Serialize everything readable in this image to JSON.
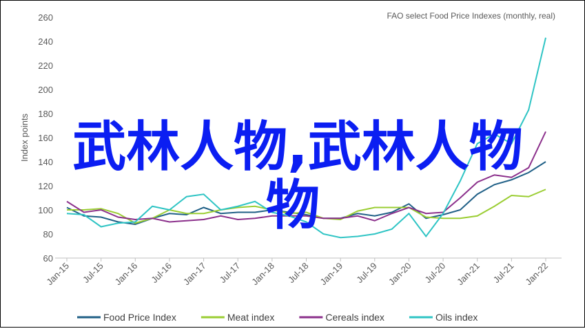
{
  "chart_data": {
    "type": "line",
    "title": "FAO select Food Price Indexes (monthly, real)",
    "y_label": "Index points",
    "categories": [
      "Jan-15",
      null,
      "Jul-15",
      null,
      "Jan-16",
      null,
      "Jul-16",
      null,
      "Jan-17",
      null,
      "Jul-17",
      null,
      "Jan-18",
      null,
      "Jul-18",
      null,
      "Jan-19",
      null,
      "Jul-19",
      null,
      "Jan-20",
      null,
      "Jul-20",
      null,
      "Jan-21",
      null,
      "Jul-21",
      null,
      "Jan-22"
    ],
    "series": [
      {
        "name": "Food Price Index",
        "color": "#1f5f86",
        "values": [
          102,
          95,
          94,
          90,
          88,
          93,
          97,
          96,
          102,
          97,
          98,
          98,
          100,
          98,
          96,
          93,
          93,
          97,
          95,
          98,
          105,
          93,
          96,
          100,
          113,
          121,
          125,
          131,
          140
        ]
      },
      {
        "name": "Meat index",
        "color": "#9acd32",
        "values": [
          100,
          100,
          101,
          97,
          89,
          93,
          100,
          97,
          97,
          100,
          102,
          103,
          100,
          97,
          98,
          93,
          92,
          99,
          102,
          102,
          102,
          94,
          93,
          93,
          95,
          103,
          112,
          111,
          117
        ]
      },
      {
        "name": "Cereals index",
        "color": "#8b2f8b",
        "values": [
          107,
          98,
          100,
          94,
          92,
          93,
          90,
          91,
          92,
          95,
          92,
          93,
          95,
          95,
          95,
          93,
          93,
          95,
          91,
          97,
          102,
          97,
          98,
          110,
          123,
          129,
          127,
          135,
          165
        ]
      },
      {
        "name": "Oils index",
        "color": "#2ec4c4",
        "values": [
          97,
          96,
          86,
          89,
          90,
          103,
          100,
          111,
          113,
          100,
          103,
          107,
          98,
          95,
          90,
          80,
          77,
          78,
          80,
          84,
          97,
          78,
          97,
          124,
          155,
          163,
          155,
          183,
          243
        ]
      }
    ],
    "ylim": [
      60,
      260
    ],
    "yticks": [
      60,
      80,
      100,
      120,
      140,
      160,
      180,
      200,
      220,
      240,
      260
    ],
    "legend": "bottom"
  },
  "overlay": {
    "line1": "武林人物,武林人物",
    "line2": "物"
  }
}
